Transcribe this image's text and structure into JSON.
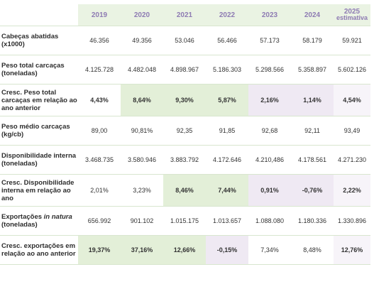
{
  "header": {
    "years": [
      "2019",
      "2020",
      "2021",
      "2022",
      "2023",
      "2024"
    ],
    "last_year": "2025",
    "last_year_note": "estimativa"
  },
  "rows": [
    {
      "label": "Cabeças abatidas (x1000)",
      "values": [
        "46.356",
        "49.356",
        "53.046",
        "56.466",
        "57.173",
        "58.179",
        "59.921"
      ]
    },
    {
      "label": "Peso total carcaças (toneladas)",
      "values": [
        "4.125.728",
        "4.482.048",
        "4.898.967",
        "5.186.303",
        "5.298.566",
        "5.358.897",
        "5.602.126"
      ]
    },
    {
      "label": "Cresc. Peso total carcaças em relação ao ano anterior",
      "values": [
        "4,43%",
        "8,64%",
        "9,30%",
        "5,87%",
        "2,16%",
        "1,14%",
        "4,54%"
      ]
    },
    {
      "label": "Peso médio carcaças (kg/cb)",
      "values": [
        "89,00",
        "90,81%",
        "92,35",
        "91,85",
        "92,68",
        "92,11",
        "93,49"
      ]
    },
    {
      "label": "Disponibilidade interna (toneladas)",
      "values": [
        "3.468.735",
        "3.580.946",
        "3.883.792",
        "4.172.646",
        "4.210,486",
        "4.178.561",
        "4.271.230"
      ]
    },
    {
      "label": "Cresc. Disponibilidade interna em relação ao ano",
      "values": [
        "2,01%",
        "3,23%",
        "8,46%",
        "7,44%",
        "0,91%",
        "-0,76%",
        "2,22%"
      ]
    },
    {
      "label_prefix": "Exportações ",
      "label_italic": "in natura",
      "label_suffix": " (toneladas)",
      "values": [
        "656.992",
        "901.102",
        "1.015.175",
        "1.013.657",
        "1.088.080",
        "1.180.336",
        "1.330.896"
      ]
    },
    {
      "label": "Cresc. exportações em relação ao ano anterior",
      "values": [
        "19,37%",
        "37,16%",
        "12,66%",
        "-0,15%",
        "7,34%",
        "8,48%",
        "12,76%"
      ]
    }
  ],
  "colors": {
    "header_bg": "#eaf3e3",
    "header_text": "#8e7bb3",
    "highlight_green": "#e3efd8",
    "highlight_lilac": "#efe9f3",
    "highlight_pale": "#f7f4f9",
    "row_border": "#d8e6cf"
  }
}
